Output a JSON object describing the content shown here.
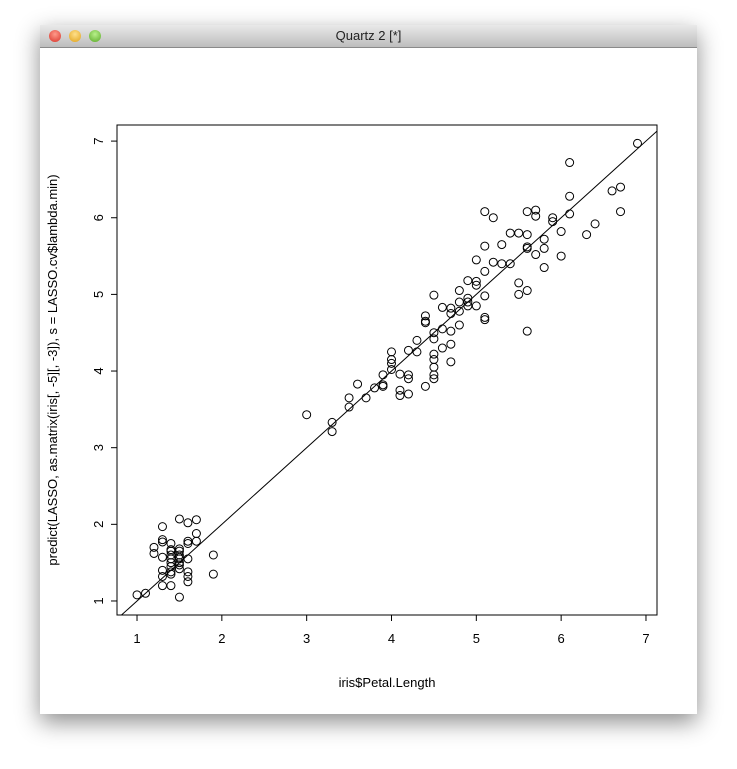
{
  "window": {
    "title": "Quartz 2 [*]"
  },
  "chart_data": {
    "type": "scatter",
    "xlabel": "iris$Petal.Length",
    "ylabel": "predict(LASSO, as.matrix(iris[, -5][, -3]), s = LASSO.cv$lambda.min)",
    "xlim": [
      0.764,
      7.13
    ],
    "ylim": [
      0.817,
      7.21
    ],
    "xticks": [
      1,
      2,
      3,
      4,
      5,
      6,
      7
    ],
    "yticks": [
      1,
      2,
      3,
      4,
      5,
      6,
      7
    ],
    "reference_line": {
      "intercept": 0,
      "slope": 1
    },
    "color": "#000000",
    "x": [
      1.0,
      1.1,
      1.2,
      1.2,
      1.3,
      1.3,
      1.3,
      1.3,
      1.3,
      1.3,
      1.3,
      1.4,
      1.4,
      1.4,
      1.4,
      1.4,
      1.4,
      1.4,
      1.4,
      1.4,
      1.4,
      1.5,
      1.5,
      1.5,
      1.5,
      1.5,
      1.5,
      1.5,
      1.5,
      1.5,
      1.5,
      1.6,
      1.6,
      1.6,
      1.6,
      1.6,
      1.6,
      1.6,
      1.7,
      1.7,
      1.7,
      1.9,
      1.9,
      3.0,
      3.3,
      3.3,
      3.5,
      3.5,
      3.6,
      3.7,
      3.8,
      3.9,
      3.9,
      3.9,
      4.0,
      4.0,
      4.0,
      4.0,
      4.1,
      4.1,
      4.1,
      4.2,
      4.2,
      4.2,
      4.2,
      4.3,
      4.3,
      4.4,
      4.4,
      4.4,
      4.4,
      4.5,
      4.5,
      4.5,
      4.5,
      4.5,
      4.5,
      4.5,
      4.5,
      4.6,
      4.6,
      4.6,
      4.7,
      4.7,
      4.7,
      4.7,
      4.7,
      4.8,
      4.8,
      4.8,
      4.8,
      4.9,
      4.9,
      4.9,
      4.9,
      5.0,
      5.0,
      5.0,
      5.0,
      5.1,
      5.1,
      5.1,
      5.1,
      5.1,
      5.1,
      5.2,
      5.2,
      5.3,
      5.3,
      5.4,
      5.4,
      5.5,
      5.5,
      5.5,
      5.6,
      5.6,
      5.6,
      5.6,
      5.6,
      5.6,
      5.7,
      5.7,
      5.7,
      5.8,
      5.8,
      5.8,
      5.9,
      5.9,
      6.0,
      6.0,
      6.1,
      6.1,
      6.1,
      6.3,
      6.4,
      6.6,
      6.7,
      6.7,
      6.9
    ],
    "values": [
      1.08,
      1.1,
      1.62,
      1.7,
      1.97,
      1.8,
      1.77,
      1.57,
      1.4,
      1.32,
      1.2,
      1.75,
      1.67,
      1.65,
      1.6,
      1.55,
      1.5,
      1.45,
      1.38,
      1.35,
      1.2,
      2.07,
      1.68,
      1.65,
      1.6,
      1.57,
      1.55,
      1.5,
      1.47,
      1.42,
      1.05,
      2.02,
      1.78,
      1.75,
      1.55,
      1.38,
      1.32,
      1.25,
      2.06,
      1.88,
      1.78,
      1.6,
      1.35,
      3.43,
      3.33,
      3.21,
      3.65,
      3.53,
      3.83,
      3.65,
      3.78,
      3.95,
      3.82,
      3.8,
      4.25,
      4.15,
      4.1,
      4.02,
      3.96,
      3.75,
      3.68,
      4.27,
      3.95,
      3.9,
      3.7,
      4.4,
      4.25,
      4.72,
      4.65,
      4.63,
      3.8,
      4.99,
      4.5,
      4.42,
      4.22,
      4.15,
      4.05,
      3.95,
      3.9,
      4.83,
      4.55,
      4.3,
      4.82,
      4.75,
      4.52,
      4.35,
      4.12,
      5.05,
      4.9,
      4.78,
      4.6,
      5.18,
      4.95,
      4.9,
      4.85,
      5.45,
      5.17,
      5.12,
      4.85,
      6.08,
      5.63,
      5.3,
      4.98,
      4.7,
      4.67,
      6.0,
      5.42,
      5.65,
      5.4,
      5.8,
      5.4,
      5.8,
      5.15,
      5.0,
      6.08,
      5.78,
      5.62,
      5.6,
      5.05,
      4.52,
      6.1,
      6.02,
      5.52,
      5.72,
      5.6,
      5.35,
      6.0,
      5.95,
      5.82,
      5.5,
      6.72,
      6.28,
      6.05,
      5.78,
      5.92,
      6.35,
      6.4,
      6.08,
      6.97
    ]
  }
}
